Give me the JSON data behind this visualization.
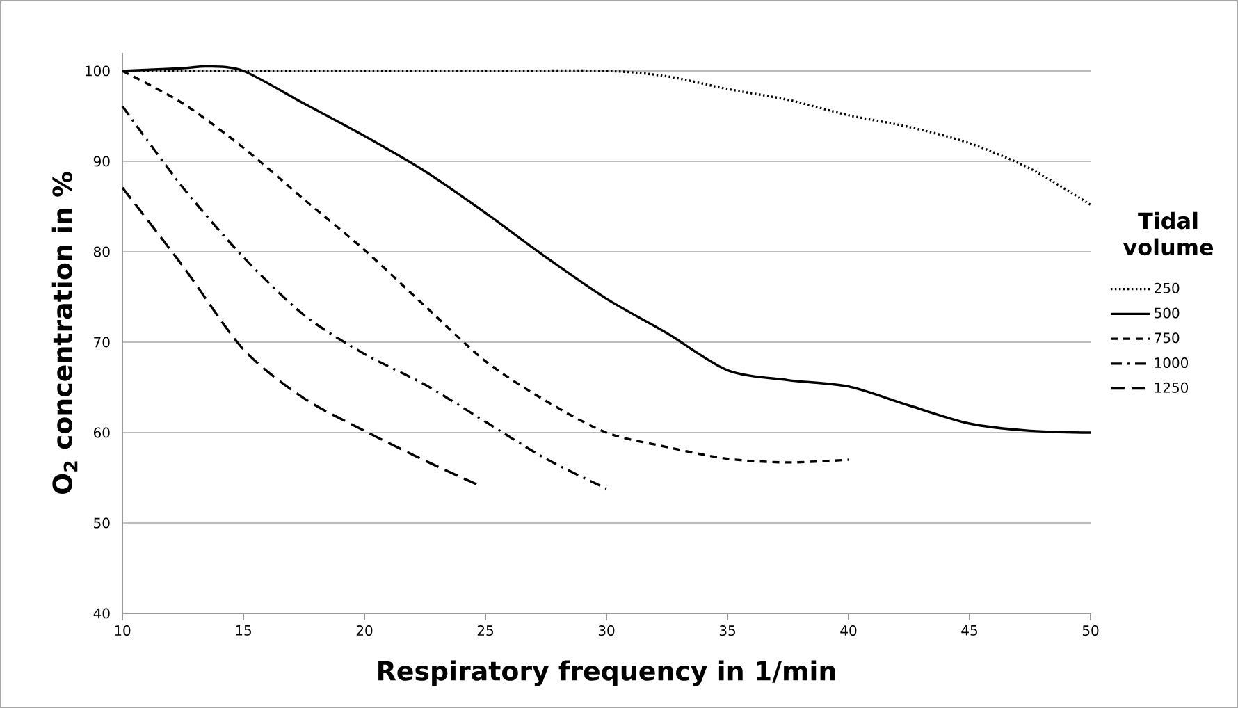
{
  "chart_data": {
    "type": "line",
    "xlabel": "Respiratory frequency in 1/min",
    "ylabel": "O$_{2}$ concentration in %",
    "legend_title": "Tidal volume",
    "xlim": [
      10,
      50
    ],
    "ylim": [
      40,
      102
    ],
    "xticks": [
      10,
      15,
      20,
      25,
      30,
      35,
      40,
      45,
      50
    ],
    "yticks": [
      40,
      50,
      60,
      70,
      80,
      90,
      100
    ],
    "grid": "y",
    "legend": "right",
    "marker": "none",
    "series": [
      {
        "name": "250",
        "color": "#000000",
        "line_style": "dotted",
        "x": [
          10,
          15,
          20,
          25,
          30,
          32.5,
          35,
          37.5,
          40,
          42.5,
          45,
          47.5,
          50
        ],
        "values": [
          100,
          100,
          100,
          100,
          100,
          99.4,
          98,
          96.8,
          95.1,
          93.8,
          92,
          89.2,
          85.2
        ]
      },
      {
        "name": "500",
        "color": "#000000",
        "line_style": "solid",
        "x": [
          10,
          12.5,
          13.5,
          15,
          17.5,
          20,
          22.5,
          25,
          27.5,
          30,
          32.5,
          35,
          37.5,
          40,
          42.5,
          45,
          47.5,
          50
        ],
        "values": [
          100,
          100.3,
          100.5,
          100,
          96.4,
          92.8,
          88.9,
          84.3,
          79.4,
          74.8,
          71,
          66.9,
          65.8,
          65.1,
          63,
          61,
          60.2,
          60
        ]
      },
      {
        "name": "750",
        "color": "#000000",
        "line_style": "dashed",
        "x": [
          10,
          12.5,
          15,
          17.5,
          20,
          22.5,
          25,
          27.5,
          30,
          32.5,
          35,
          37.5,
          40
        ],
        "values": [
          100,
          96.4,
          91.5,
          85.8,
          80.2,
          74,
          67.9,
          63.5,
          60,
          58.4,
          57.1,
          56.7,
          57
        ]
      },
      {
        "name": "1000",
        "color": "#000000",
        "line_style": "dashdot",
        "x": [
          10,
          12.5,
          15,
          17.5,
          20,
          22.5,
          25,
          27.5,
          30
        ],
        "values": [
          96.1,
          87.1,
          79.4,
          73,
          68.7,
          65.3,
          61.2,
          57.1,
          53.8
        ]
      },
      {
        "name": "1250",
        "color": "#000000",
        "line_style": "longdashed",
        "x": [
          10,
          12.5,
          15,
          17.5,
          20,
          22.5,
          24.7
        ],
        "values": [
          87.1,
          78.4,
          69.2,
          63.8,
          60.2,
          56.9,
          54.2
        ]
      }
    ]
  }
}
